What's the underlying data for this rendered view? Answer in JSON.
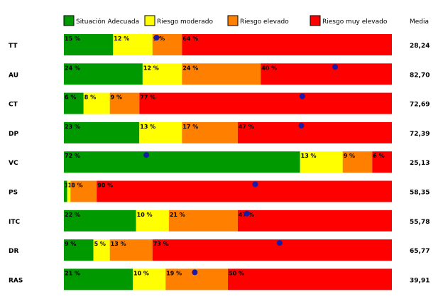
{
  "chart_data": {
    "type": "bar",
    "stacked": true,
    "orientation": "horizontal",
    "legend_position": "top",
    "media_header": "Media",
    "legend": [
      {
        "name": "Situación Adecuada",
        "color": "#009900"
      },
      {
        "name": "Riesgo moderado",
        "color": "#ffff00"
      },
      {
        "name": "Riesgo elevado",
        "color": "#ff8000"
      },
      {
        "name": "Riesgo muy elevado",
        "color": "#ff0000"
      }
    ],
    "dot_color": "#1a1aa6",
    "rows": [
      {
        "label": "TT",
        "values": [
          15,
          12,
          9,
          64
        ],
        "labels": [
          "15 %",
          "12 %",
          "9 %",
          "64 %"
        ],
        "media": 28.24,
        "media_label": "28,24"
      },
      {
        "label": "AU",
        "values": [
          24,
          12,
          24,
          40
        ],
        "labels": [
          "24 %",
          "12 %",
          "24 %",
          "40 %"
        ],
        "media": 82.7,
        "media_label": "82,70"
      },
      {
        "label": "CT",
        "values": [
          6,
          8,
          9,
          77
        ],
        "labels": [
          "6 %",
          "8 %",
          "9 %",
          "77 %"
        ],
        "media": 72.69,
        "media_label": "72,69"
      },
      {
        "label": "DP",
        "values": [
          23,
          13,
          17,
          47
        ],
        "labels": [
          "23 %",
          "13 %",
          "17 %",
          "47 %"
        ],
        "media": 72.39,
        "media_label": "72,39"
      },
      {
        "label": "VC",
        "values": [
          72,
          13,
          9,
          6
        ],
        "labels": [
          "72 %",
          "13 %",
          "9 %",
          "6 %"
        ],
        "media": 25.13,
        "media_label": "25,13"
      },
      {
        "label": "PS",
        "values": [
          1,
          1,
          8,
          90
        ],
        "labels": [
          "1",
          "1",
          "8 %",
          "90 %"
        ],
        "media": 58.35,
        "media_label": "58,35"
      },
      {
        "label": "ITC",
        "values": [
          22,
          10,
          21,
          47
        ],
        "labels": [
          "22 %",
          "10 %",
          "21 %",
          "47 %"
        ],
        "media": 55.78,
        "media_label": "55,78"
      },
      {
        "label": "DR",
        "values": [
          9,
          5,
          13,
          73
        ],
        "labels": [
          "9 %",
          "5 %",
          "13 %",
          "73 %"
        ],
        "media": 65.77,
        "media_label": "65,77"
      },
      {
        "label": "RAS",
        "values": [
          21,
          10,
          19,
          50
        ],
        "labels": [
          "21 %",
          "10 %",
          "19 %",
          "50 %"
        ],
        "media": 39.91,
        "media_label": "39,91"
      }
    ],
    "xlim": [
      0,
      100
    ]
  }
}
